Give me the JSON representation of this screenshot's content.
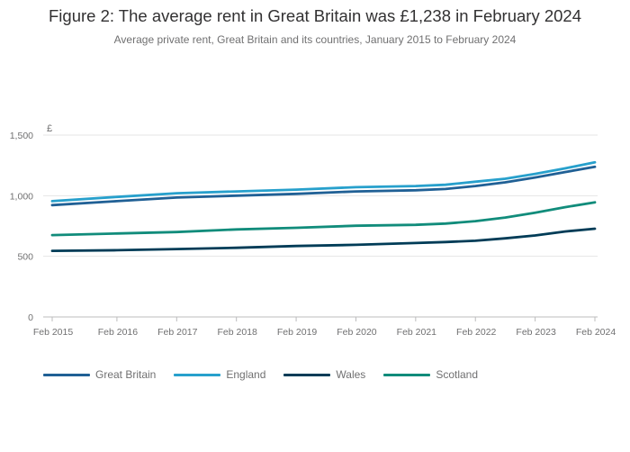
{
  "chart_data": {
    "type": "line",
    "title": "Figure 2: The average rent in Great Britain was £1,238 in February 2024",
    "subtitle": "Average private rent, Great Britain and its countries, January 2015 to February 2024",
    "ylabel": "£",
    "xlabel": "",
    "x_tick_labels": [
      "Feb 2015",
      "Feb 2016",
      "Feb 2017",
      "Feb 2018",
      "Feb 2019",
      "Feb 2020",
      "Feb 2021",
      "Feb 2022",
      "Feb 2023",
      "Feb 2024"
    ],
    "y_ticks": [
      0,
      500,
      1000,
      1500
    ],
    "y_tick_labels": [
      "0",
      "500",
      "1,000",
      "1,500"
    ],
    "ylim": [
      0,
      1500
    ],
    "xlim": [
      "Jan 2015",
      "Feb 2024"
    ],
    "grid": true,
    "legend_position": "bottom-left",
    "series": [
      {
        "name": "Great Britain",
        "color": "#206095",
        "points": [
          [
            "2015-01",
            922
          ],
          [
            "2016-02",
            955
          ],
          [
            "2017-02",
            985
          ],
          [
            "2018-02",
            1000
          ],
          [
            "2019-02",
            1015
          ],
          [
            "2020-02",
            1035
          ],
          [
            "2021-02",
            1045
          ],
          [
            "2021-08",
            1055
          ],
          [
            "2022-02",
            1080
          ],
          [
            "2022-08",
            1110
          ],
          [
            "2023-02",
            1150
          ],
          [
            "2023-08",
            1195
          ],
          [
            "2024-02",
            1238
          ]
        ]
      },
      {
        "name": "England",
        "color": "#27a0cc",
        "points": [
          [
            "2015-01",
            955
          ],
          [
            "2016-02",
            990
          ],
          [
            "2017-02",
            1020
          ],
          [
            "2018-02",
            1035
          ],
          [
            "2019-02",
            1050
          ],
          [
            "2020-02",
            1070
          ],
          [
            "2021-02",
            1080
          ],
          [
            "2021-08",
            1090
          ],
          [
            "2022-02",
            1115
          ],
          [
            "2022-08",
            1140
          ],
          [
            "2023-02",
            1180
          ],
          [
            "2023-08",
            1225
          ],
          [
            "2024-02",
            1275
          ]
        ]
      },
      {
        "name": "Wales",
        "color": "#003c57",
        "points": [
          [
            "2015-01",
            545
          ],
          [
            "2016-02",
            550
          ],
          [
            "2017-02",
            560
          ],
          [
            "2018-02",
            570
          ],
          [
            "2019-02",
            585
          ],
          [
            "2020-02",
            595
          ],
          [
            "2021-02",
            610
          ],
          [
            "2021-08",
            618
          ],
          [
            "2022-02",
            628
          ],
          [
            "2022-08",
            648
          ],
          [
            "2023-02",
            672
          ],
          [
            "2023-08",
            705
          ],
          [
            "2024-02",
            728
          ]
        ]
      },
      {
        "name": "Scotland",
        "color": "#118c7b",
        "points": [
          [
            "2015-01",
            675
          ],
          [
            "2016-02",
            688
          ],
          [
            "2017-02",
            700
          ],
          [
            "2018-02",
            722
          ],
          [
            "2019-02",
            735
          ],
          [
            "2020-02",
            752
          ],
          [
            "2021-02",
            760
          ],
          [
            "2021-08",
            770
          ],
          [
            "2022-02",
            790
          ],
          [
            "2022-08",
            820
          ],
          [
            "2023-02",
            860
          ],
          [
            "2023-08",
            905
          ],
          [
            "2024-02",
            945
          ]
        ]
      }
    ]
  }
}
